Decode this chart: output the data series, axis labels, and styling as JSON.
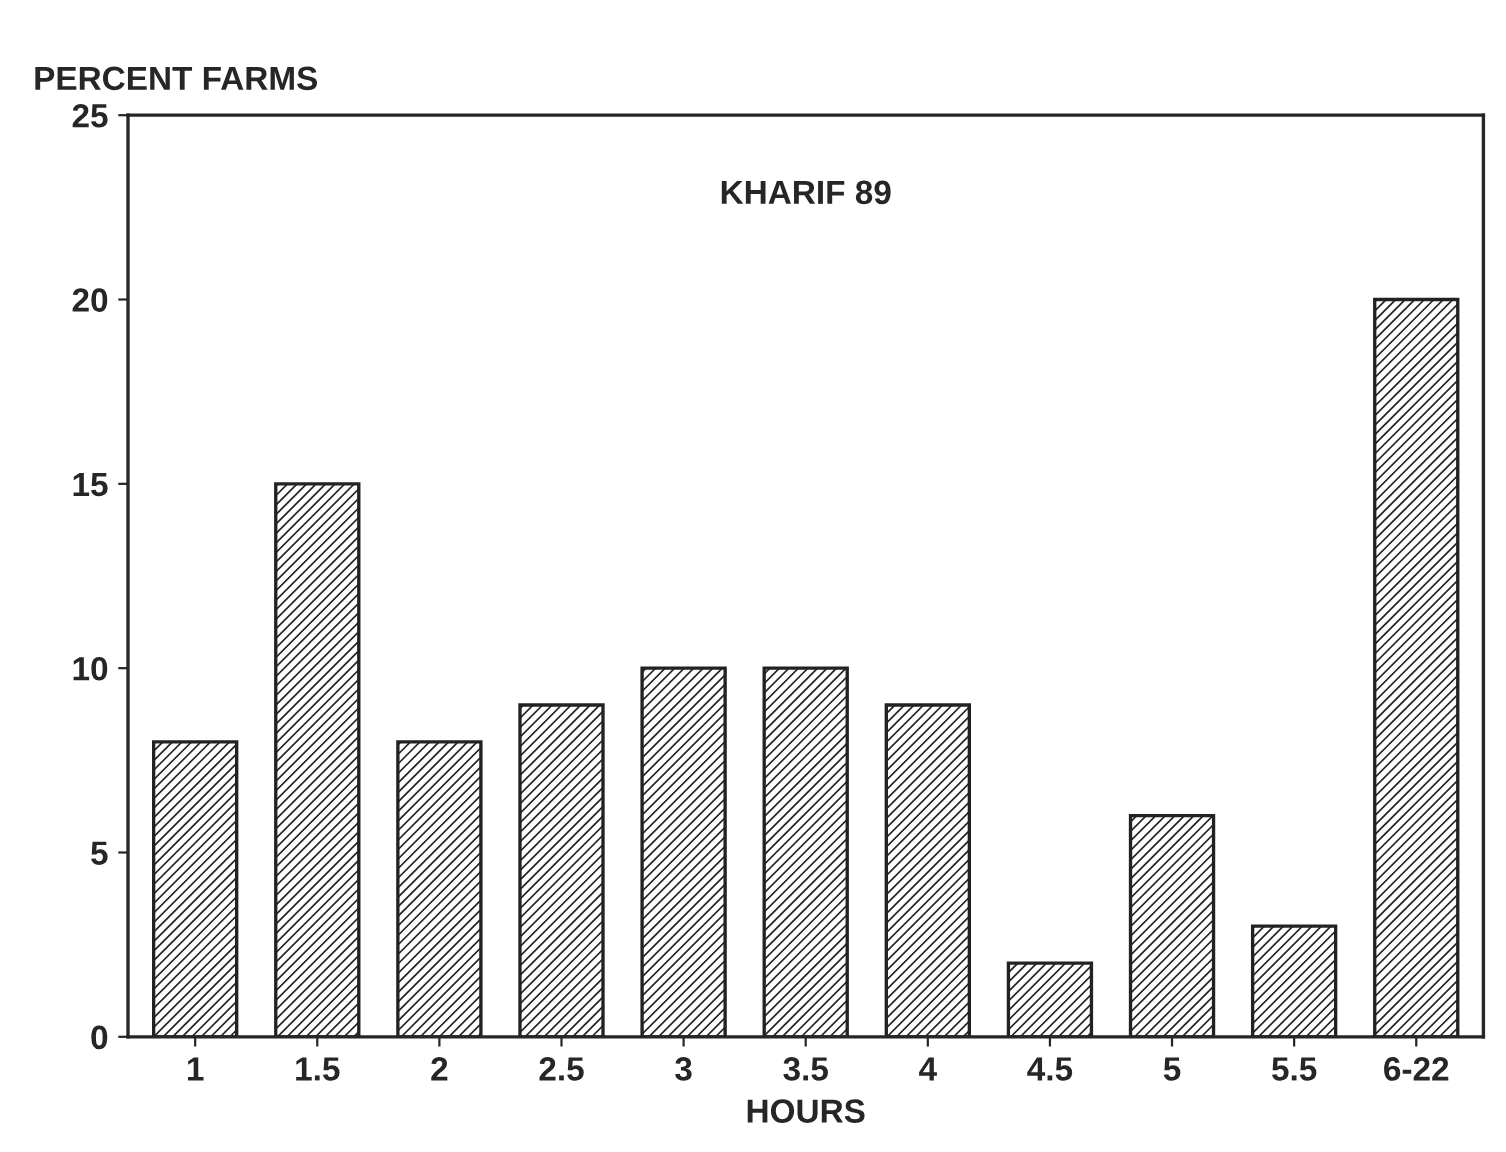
{
  "chart_data": {
    "type": "bar",
    "title": "KHARIF 89",
    "ylabel": "PERCENT FARMS",
    "xlabel": "HOURS",
    "categories": [
      "1",
      "1.5",
      "2",
      "2.5",
      "3",
      "3.5",
      "4",
      "4.5",
      "5",
      "5.5",
      "6-22"
    ],
    "values": [
      8,
      15,
      8,
      9,
      10,
      10,
      9,
      2,
      6,
      3,
      20
    ],
    "color": "#222222",
    "ylim": [
      0,
      25
    ],
    "yticks": [
      0,
      5,
      10,
      15,
      20,
      25
    ],
    "grid": false,
    "legend": false
  }
}
